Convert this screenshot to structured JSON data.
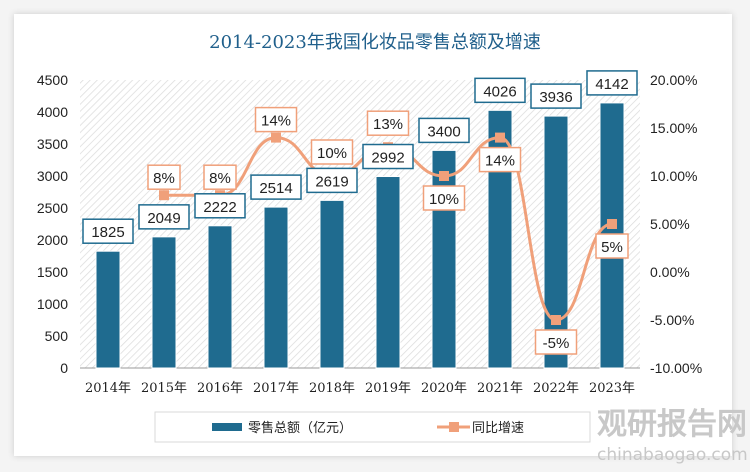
{
  "chart_data": {
    "type": "bar+line",
    "title": "2014-2023年我国化妆品零售总额及增速",
    "categories": [
      "2014年",
      "2015年",
      "2016年",
      "2017年",
      "2018年",
      "2019年",
      "2020年",
      "2021年",
      "2022年",
      "2023年"
    ],
    "series": [
      {
        "name": "零售总额（亿元）",
        "type": "bar",
        "axis": "left",
        "color": "#1f6b8f",
        "values": [
          1825,
          2049,
          2222,
          2514,
          2619,
          2992,
          3400,
          4026,
          3936,
          4142
        ],
        "labels": [
          "1825",
          "2049",
          "2222",
          "2514",
          "2619",
          "2992",
          "3400",
          "4026",
          "3936",
          "4142"
        ]
      },
      {
        "name": "同比增速",
        "type": "line",
        "axis": "right",
        "color": "#f0a07a",
        "values": [
          null,
          8,
          8,
          14,
          10,
          13,
          10,
          14,
          -5,
          5
        ],
        "labels": [
          "",
          "8%",
          "8%",
          "14%",
          "10%",
          "13%",
          "10%",
          "14%",
          "-5%",
          "5%"
        ]
      }
    ],
    "left_axis": {
      "ylim": [
        0,
        4500
      ],
      "ticks": [
        "0",
        "500",
        "1000",
        "1500",
        "2000",
        "2500",
        "3000",
        "3500",
        "4000",
        "4500"
      ]
    },
    "right_axis": {
      "ylim": [
        -10,
        20
      ],
      "ticks": [
        "-10.00%",
        "-5.00%",
        "0.00%",
        "5.00%",
        "10.00%",
        "15.00%",
        "20.00%"
      ]
    },
    "legend": "bottom",
    "grid": false
  },
  "watermark": {
    "cn": "观研报告网",
    "en": "chinabaogao.com"
  }
}
